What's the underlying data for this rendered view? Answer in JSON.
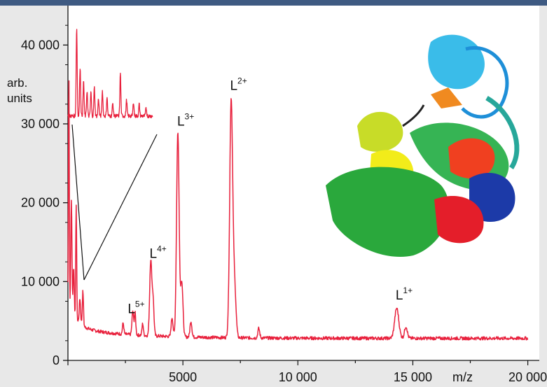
{
  "chart_data": {
    "type": "line",
    "title": "",
    "xlabel": "m/z",
    "ylabel": "arb. units",
    "ylabel_line1": "arb.",
    "ylabel_line2": "units",
    "xlim": [
      0,
      20500
    ],
    "ylim": [
      0,
      45000
    ],
    "x_ticks": [
      {
        "value": 5000,
        "label": "5000"
      },
      {
        "value": 10000,
        "label": "10 000"
      },
      {
        "value": 15000,
        "label": "15 000"
      },
      {
        "value": 20000,
        "label": "20 000"
      }
    ],
    "y_ticks": [
      {
        "value": 0,
        "label": "0"
      },
      {
        "value": 10000,
        "label": "10 000"
      },
      {
        "value": 20000,
        "label": "20 000"
      },
      {
        "value": 30000,
        "label": "30 000"
      },
      {
        "value": 40000,
        "label": "40 000"
      }
    ],
    "line_color": "#e8203c",
    "baseline": 2800,
    "series": [
      {
        "peaks": [
          {
            "x": 40,
            "y": 32500,
            "w": 18
          },
          {
            "x": 150,
            "y": 17000,
            "w": 25
          },
          {
            "x": 250,
            "y": 9000,
            "w": 25
          },
          {
            "x": 360,
            "y": 17500,
            "w": 20
          },
          {
            "x": 520,
            "y": 6000,
            "w": 30
          },
          {
            "x": 650,
            "y": 7200,
            "w": 25
          },
          {
            "x": 2400,
            "y": 4200,
            "w": 30
          },
          {
            "x": 2820,
            "y": 5800,
            "w": 35
          },
          {
            "x": 2920,
            "y": 5600,
            "w": 30
          },
          {
            "x": 3250,
            "y": 4300,
            "w": 30
          },
          {
            "x": 3600,
            "y": 12300,
            "w": 45
          },
          {
            "x": 3700,
            "y": 7500,
            "w": 40
          },
          {
            "x": 4530,
            "y": 5200,
            "w": 40
          },
          {
            "x": 4780,
            "y": 28800,
            "w": 55
          },
          {
            "x": 4950,
            "y": 9800,
            "w": 50
          },
          {
            "x": 5350,
            "y": 4800,
            "w": 40
          },
          {
            "x": 7100,
            "y": 33000,
            "w": 65
          },
          {
            "x": 7250,
            "y": 9000,
            "w": 60
          },
          {
            "x": 8300,
            "y": 4000,
            "w": 40
          },
          {
            "x": 14300,
            "y": 6600,
            "w": 90
          },
          {
            "x": 14700,
            "y": 4300,
            "w": 60
          }
        ]
      }
    ],
    "inset": {
      "x": [
        0,
        3700
      ],
      "peaks": [
        {
          "x": 380,
          "y": 42200
        },
        {
          "x": 530,
          "y": 37200
        },
        {
          "x": 680,
          "y": 35500
        },
        {
          "x": 830,
          "y": 34200
        },
        {
          "x": 1000,
          "y": 34000
        },
        {
          "x": 1150,
          "y": 34600
        },
        {
          "x": 1330,
          "y": 33200
        },
        {
          "x": 1500,
          "y": 34200
        },
        {
          "x": 1700,
          "y": 33400
        },
        {
          "x": 1950,
          "y": 32600
        },
        {
          "x": 2280,
          "y": 36500
        },
        {
          "x": 2550,
          "y": 33000
        },
        {
          "x": 2850,
          "y": 32800
        },
        {
          "x": 3100,
          "y": 32500
        },
        {
          "x": 3400,
          "y": 32000
        }
      ]
    },
    "peak_labels": [
      {
        "label": "L",
        "charge": "5+",
        "x": 2600,
        "y": 6000
      },
      {
        "label": "L",
        "charge": "4+",
        "x": 3550,
        "y": 13000
      },
      {
        "label": "L",
        "charge": "3+",
        "x": 4750,
        "y": 29800
      },
      {
        "label": "L",
        "charge": "2+",
        "x": 7050,
        "y": 34300
      },
      {
        "label": "L",
        "charge": "1+",
        "x": 14250,
        "y": 7700
      }
    ],
    "grid": false,
    "legend": "none"
  }
}
